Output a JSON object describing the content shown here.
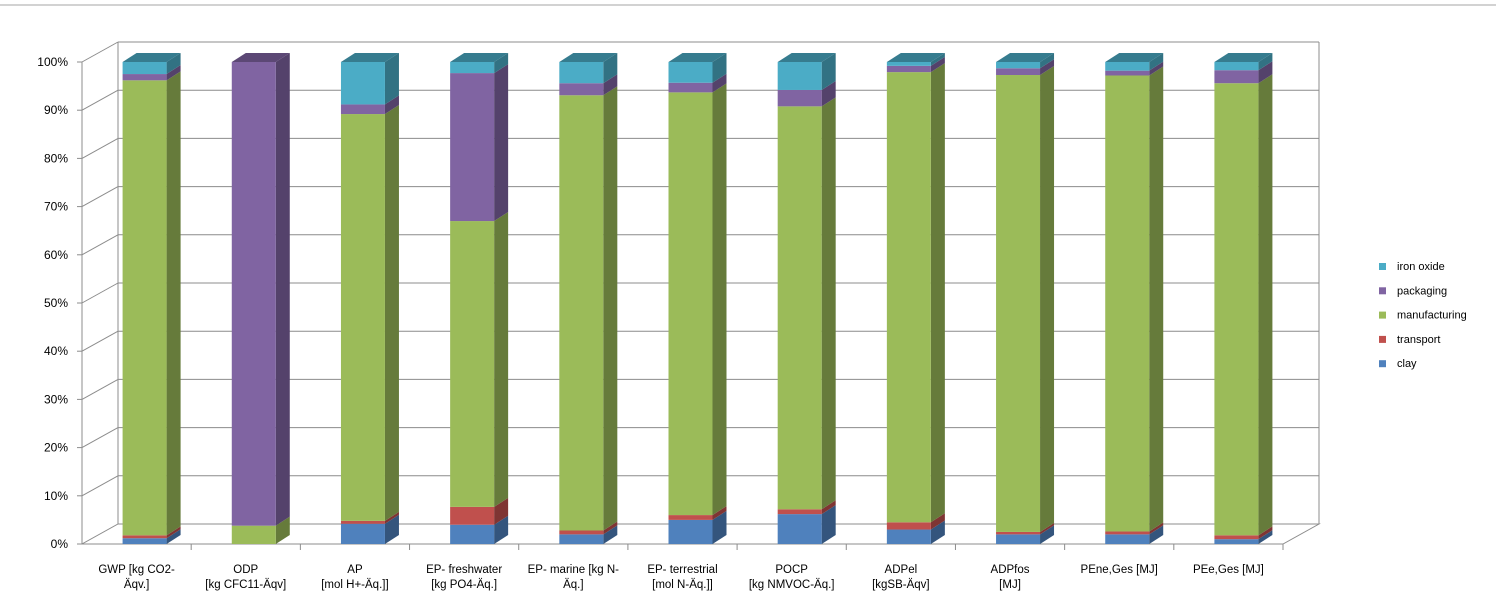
{
  "chart_data": {
    "type": "bar",
    "stacked": true,
    "percent_stacked": true,
    "three_d": true,
    "categories": [
      [
        "GWP [kg CO2-",
        "Äqv.]"
      ],
      [
        "ODP",
        "[kg CFC11-Äqv]"
      ],
      [
        "AP",
        "[mol H+-Äq.]]"
      ],
      [
        "EP- freshwater",
        "[kg PO4-Äq.]"
      ],
      [
        "EP- marine [kg N-",
        "Äq.]"
      ],
      [
        "EP- terrestrial",
        "[mol N-Äq.]]"
      ],
      [
        "POCP",
        "[kg NMVOC-Äq.]"
      ],
      [
        "ADPel",
        "[kgSB-Äqv]"
      ],
      [
        "ADPfos",
        "[MJ]"
      ],
      [
        "PEne,Ges [MJ]"
      ],
      [
        "PEe,Ges [MJ]"
      ]
    ],
    "series": [
      {
        "name": "clay",
        "color": "#4F81BD",
        "values": [
          1.2,
          0,
          4.2,
          4,
          2,
          5,
          6.2,
          3,
          2,
          2,
          1
        ]
      },
      {
        "name": "transport",
        "color": "#C0504D",
        "values": [
          0.6,
          0,
          0.6,
          3.7,
          0.8,
          1,
          1,
          1.5,
          0.5,
          0.6,
          0.8
        ]
      },
      {
        "name": "manufacturing",
        "color": "#9BBB59",
        "values": [
          94.4,
          3.8,
          84.4,
          59.3,
          90.3,
          87.7,
          83.6,
          93.4,
          94.8,
          94.6,
          93.8
        ]
      },
      {
        "name": "packaging",
        "color": "#8064A2",
        "values": [
          1.3,
          96.2,
          2,
          30.7,
          2.5,
          2,
          3.4,
          1.3,
          1.4,
          1,
          2.7
        ]
      },
      {
        "name": "iron oxide",
        "color": "#4BACC6",
        "values": [
          2.5,
          0,
          8.8,
          2.3,
          4.4,
          4.3,
          5.8,
          0.8,
          1.3,
          1.8,
          1.7
        ]
      }
    ],
    "yticks": [
      "0%",
      "10%",
      "20%",
      "30%",
      "40%",
      "50%",
      "60%",
      "70%",
      "80%",
      "90%",
      "100%"
    ],
    "ylim": [
      0,
      100
    ],
    "legend_position": "right",
    "legend_order": [
      "iron oxide",
      "packaging",
      "manufacturing",
      "transport",
      "clay"
    ]
  }
}
